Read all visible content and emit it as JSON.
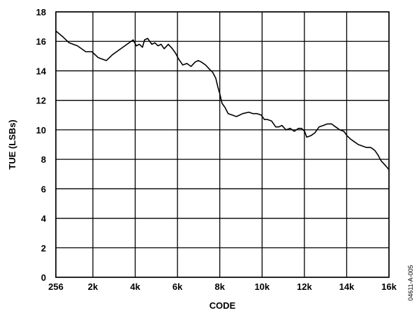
{
  "chart_data": {
    "type": "line",
    "title": "",
    "xlabel": "CODE",
    "ylabel": "TUE (LSBs)",
    "figure_id": "04611-A-005",
    "grid": true,
    "xlim": [
      256,
      16383
    ],
    "ylim": [
      0,
      18
    ],
    "x_ticks": [
      256,
      2048,
      4096,
      6144,
      8192,
      10240,
      12288,
      14336,
      16383
    ],
    "x_tick_labels": [
      "256",
      "2k",
      "4k",
      "6k",
      "8k",
      "10k",
      "12k",
      "14k",
      "16k"
    ],
    "y_ticks": [
      0,
      2,
      4,
      6,
      8,
      10,
      12,
      14,
      16,
      18
    ],
    "y_tick_labels": [
      "0",
      "2",
      "4",
      "6",
      "8",
      "10",
      "12",
      "14",
      "16",
      "18"
    ],
    "series": [
      {
        "x": [
          256,
          600,
          900,
          1300,
          1700,
          2000,
          2300,
          2500,
          2700,
          3000,
          3300,
          3700,
          4000,
          4150,
          4300,
          4450,
          4550,
          4700,
          4900,
          5050,
          5200,
          5350,
          5500,
          5700,
          5900,
          6050,
          6200,
          6400,
          6600,
          6800,
          7000,
          7150,
          7300,
          7500,
          7700,
          7850,
          8000,
          8100,
          8200,
          8300,
          8450,
          8600,
          8800,
          9000,
          9300,
          9600,
          9800,
          10000,
          10200,
          10350,
          10500,
          10700,
          10900,
          11050,
          11200,
          11400,
          11600,
          11800,
          12000,
          12150,
          12300,
          12400,
          12600,
          12800,
          13000,
          13200,
          13400,
          13600,
          13800,
          14000,
          14200,
          14350,
          14500,
          14700,
          14900,
          15100,
          15300,
          15500,
          15700,
          15850,
          16000,
          16200,
          16383
        ],
        "y": [
          16.7,
          16.3,
          15.9,
          15.7,
          15.3,
          15.3,
          14.9,
          14.8,
          14.7,
          15.1,
          15.4,
          15.8,
          16.1,
          15.7,
          15.8,
          15.6,
          16.1,
          16.2,
          15.8,
          15.9,
          15.7,
          15.8,
          15.5,
          15.8,
          15.5,
          15.2,
          14.8,
          14.4,
          14.5,
          14.3,
          14.6,
          14.7,
          14.6,
          14.4,
          14.1,
          13.9,
          13.5,
          12.9,
          12.4,
          11.8,
          11.5,
          11.1,
          11.0,
          10.9,
          11.1,
          11.2,
          11.1,
          11.1,
          11.0,
          10.7,
          10.7,
          10.6,
          10.2,
          10.2,
          10.3,
          10.0,
          10.1,
          9.9,
          10.1,
          10.1,
          9.9,
          9.5,
          9.6,
          9.8,
          10.2,
          10.3,
          10.4,
          10.4,
          10.2,
          10.0,
          9.9,
          9.6,
          9.4,
          9.2,
          9.0,
          8.9,
          8.8,
          8.8,
          8.6,
          8.3,
          7.9,
          7.6,
          7.3
        ]
      }
    ]
  }
}
